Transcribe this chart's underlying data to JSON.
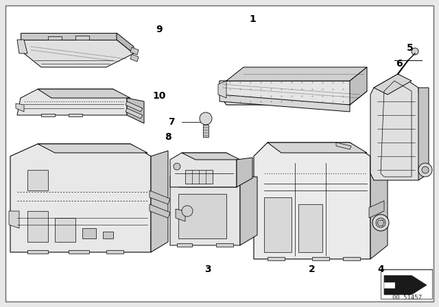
{
  "background_color": "#e8e8e8",
  "diagram_bg": "#ffffff",
  "line_color": "#000000",
  "text_color": "#000000",
  "label_fontsize": 10,
  "watermark_text": "51457",
  "watermark_prefix": "00 ",
  "footnote_fontsize": 6.5,
  "border_color": "#888888",
  "fig_width": 6.4,
  "fig_height": 4.48,
  "dpi": 100
}
